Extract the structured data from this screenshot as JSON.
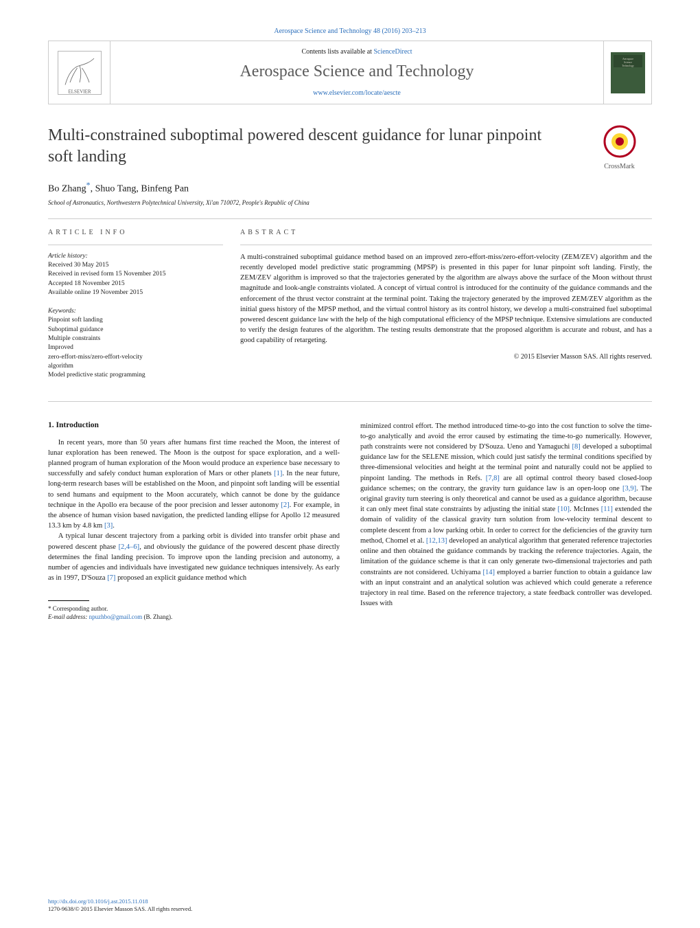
{
  "header": {
    "top_citation": "Aerospace Science and Technology 48 (2016) 203–213",
    "contents_prefix": "Contents lists available at ",
    "contents_link": "ScienceDirect",
    "journal_name": "Aerospace Science and Technology",
    "journal_url": "www.elsevier.com/locate/aescte",
    "crossmark_label": "CrossMark",
    "logo_color": "#f27c21",
    "logo_text_color": "#555555",
    "cover_bg": "#3b5b3b"
  },
  "article": {
    "title": "Multi-constrained suboptimal powered descent guidance for lunar pinpoint soft landing",
    "authors_html": "Bo Zhang",
    "authors_rest": ", Shuo Tang, Binfeng Pan",
    "star": "*",
    "affiliation": "School of Astronautics, Northwestern Polytechnical University, Xi'an 710072, People's Republic of China"
  },
  "info": {
    "heading": "ARTICLE INFO",
    "history_label": "Article history:",
    "history": [
      "Received 30 May 2015",
      "Received in revised form 15 November 2015",
      "Accepted 18 November 2015",
      "Available online 19 November 2015"
    ],
    "keywords_label": "Keywords:",
    "keywords": [
      "Pinpoint soft landing",
      "Suboptimal guidance",
      "Multiple constraints",
      "Improved",
      "zero-effort-miss/zero-effort-velocity",
      "algorithm",
      "Model predictive static programming"
    ]
  },
  "abstract": {
    "heading": "ABSTRACT",
    "text": "A multi-constrained suboptimal guidance method based on an improved zero-effort-miss/zero-effort-velocity (ZEM/ZEV) algorithm and the recently developed model predictive static programming (MPSP) is presented in this paper for lunar pinpoint soft landing. Firstly, the ZEM/ZEV algorithm is improved so that the trajectories generated by the algorithm are always above the surface of the Moon without thrust magnitude and look-angle constraints violated. A concept of virtual control is introduced for the continuity of the guidance commands and the enforcement of the thrust vector constraint at the terminal point. Taking the trajectory generated by the improved ZEM/ZEV algorithm as the initial guess history of the MPSP method, and the virtual control history as its control history, we develop a multi-constrained fuel suboptimal powered descent guidance law with the help of the high computational efficiency of the MPSP technique. Extensive simulations are conducted to verify the design features of the algorithm. The testing results demonstrate that the proposed algorithm is accurate and robust, and has a good capability of retargeting.",
    "copyright": "© 2015 Elsevier Masson SAS. All rights reserved."
  },
  "body": {
    "heading": "1. Introduction",
    "col1_p1": "In recent years, more than 50 years after humans first time reached the Moon, the interest of lunar exploration has been renewed. The Moon is the outpost for space exploration, and a well-planned program of human exploration of the Moon would produce an experience base necessary to successfully and safely conduct human exploration of Mars or other planets [1]. In the near future, long-term research bases will be established on the Moon, and pinpoint soft landing will be essential to send humans and equipment to the Moon accurately, which cannot be done by the guidance technique in the Apollo era because of the poor precision and lesser autonomy [2]. For example, in the absence of human vision based navigation, the predicted landing ellipse for Apollo 12 measured 13.3 km by 4.8 km [3].",
    "col1_p2": "A typical lunar descent trajectory from a parking orbit is divided into transfer orbit phase and powered descent phase [2,4–6], and obviously the guidance of the powered descent phase directly determines the final landing precision. To improve upon the landing precision and autonomy, a number of agencies and individuals have investigated new guidance techniques intensively. As early as in 1997, D'Souza [7] proposed an explicit guidance method which",
    "col2_p1": "minimized control effort. The method introduced time-to-go into the cost function to solve the time-to-go analytically and avoid the error caused by estimating the time-to-go numerically. However, path constraints were not considered by D'Souza. Ueno and Yamaguchi [8] developed a suboptimal guidance law for the SELENE mission, which could just satisfy the terminal conditions specified by three-dimensional velocities and height at the terminal point and naturally could not be applied to pinpoint landing. The methods in Refs. [7,8] are all optimal control theory based closed-loop guidance schemes; on the contrary, the gravity turn guidance law is an open-loop one [3,9]. The original gravity turn steering is only theoretical and cannot be used as a guidance algorithm, because it can only meet final state constraints by adjusting the initial state [10]. McInnes [11] extended the domain of validity of the classical gravity turn solution from low-velocity terminal descent to complete descent from a low parking orbit. In order to correct for the deficiencies of the gravity turn method, Chomel et al. [12,13] developed an analytical algorithm that generated reference trajectories online and then obtained the guidance commands by tracking the reference trajectories. Again, the limitation of the guidance scheme is that it can only generate two-dimensional trajectories and path constraints are not considered. Uchiyama [14] employed a barrier function to obtain a guidance law with an input constraint and an analytical solution was achieved which could generate a reference trajectory in real time. Based on the reference trajectory, a state feedback controller was developed. Issues with"
  },
  "footnote": {
    "corr": "Corresponding author.",
    "email_label": "E-mail address:",
    "email": "npuzhbo@gmail.com",
    "email_owner": "(B. Zhang)."
  },
  "footer": {
    "doi": "http://dx.doi.org/10.1016/j.ast.2015.11.018",
    "issn_line": "1270-9638/© 2015 Elsevier Masson SAS. All rights reserved."
  },
  "colors": {
    "link": "#2a6ebb",
    "text": "#1a1a1a",
    "heading_gray": "#444444",
    "border": "#cccccc",
    "title_gray": "#383838"
  }
}
